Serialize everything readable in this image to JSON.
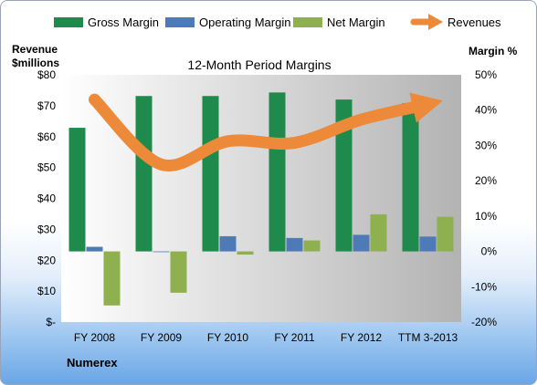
{
  "chart_data": {
    "type": "bar",
    "title": "12-Month Period Margins",
    "categories": [
      "FY 2008",
      "FY 2009",
      "FY 2010",
      "FY 2011",
      "FY 2012",
      "TTM 3-2013"
    ],
    "series": [
      {
        "name": "Gross Margin",
        "axis": "right",
        "kind": "bar",
        "color": "#1e8a4c",
        "values": [
          35,
          44,
          44,
          45,
          43,
          42
        ]
      },
      {
        "name": "Operating Margin",
        "axis": "right",
        "kind": "bar",
        "color": "#4f7ab8",
        "values": [
          1.3,
          -0.2,
          4.3,
          3.8,
          4.7,
          4.2
        ]
      },
      {
        "name": "Net Margin",
        "axis": "right",
        "kind": "bar",
        "color": "#8fb04f",
        "values": [
          -15.3,
          -11.7,
          -0.9,
          3.1,
          10.5,
          9.8
        ]
      },
      {
        "name": "Revenues",
        "axis": "left",
        "kind": "line",
        "color": "#ec8a3a",
        "values": [
          72,
          51,
          58.5,
          58,
          65.5,
          70.5
        ]
      }
    ],
    "left_axis": {
      "label_line1": "Revenue",
      "label_line2": "$millions",
      "min": 0,
      "max": 80,
      "step": 10,
      "ticks": [
        "$-",
        "$10",
        "$20",
        "$30",
        "$40",
        "$50",
        "$60",
        "$70",
        "$80"
      ]
    },
    "right_axis": {
      "label": "Margin %",
      "min": -20,
      "max": 50,
      "step": 10,
      "ticks": [
        "-20%",
        "-10%",
        "0%",
        "10%",
        "20%",
        "30%",
        "40%",
        "50%"
      ]
    },
    "grid": false,
    "legend_position": "top",
    "company": "Numerex",
    "colors": {
      "plot_left": "#ffffff",
      "plot_right": "#b3b3b3"
    }
  }
}
